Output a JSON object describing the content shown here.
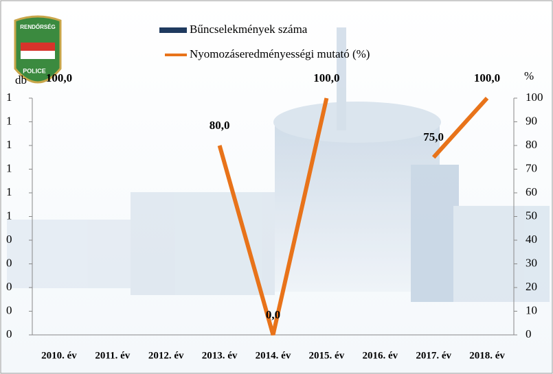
{
  "chart_data": {
    "type": "bar_line",
    "categories": [
      "2010. év",
      "2011. év",
      "2012. év",
      "2013. év",
      "2014. év",
      "2015. év",
      "2016. év",
      "2017. év",
      "2018. év"
    ],
    "series": [
      {
        "name": "Bűncselekmények száma",
        "type": "bar",
        "color": "#1f3a5f",
        "values": [
          0,
          0,
          0,
          0,
          0,
          0,
          0,
          0,
          0
        ]
      },
      {
        "name": "Nyomozáseredményességi mutató (%)",
        "type": "line",
        "axis": "y2",
        "color": "#e8731a",
        "values": [
          100,
          null,
          null,
          80,
          0,
          100,
          null,
          75,
          100
        ],
        "value_labels": [
          "100,0",
          null,
          null,
          "80,0",
          "0,0",
          "100,0",
          null,
          "75,0",
          "100,0"
        ]
      }
    ],
    "ylabel": "db",
    "y2label": "%",
    "ylim": [
      0,
      1
    ],
    "yticks": [
      {
        "value": 0,
        "label": "0"
      },
      {
        "value": 0.1,
        "label": "0"
      },
      {
        "value": 0.2,
        "label": "0"
      },
      {
        "value": 0.3,
        "label": "0"
      },
      {
        "value": 0.4,
        "label": "0"
      },
      {
        "value": 0.5,
        "label": "1"
      },
      {
        "value": 0.6,
        "label": "1"
      },
      {
        "value": 0.7,
        "label": "1"
      },
      {
        "value": 0.8,
        "label": "1"
      },
      {
        "value": 0.9,
        "label": "1"
      },
      {
        "value": 1,
        "label": "1"
      }
    ],
    "y2lim": [
      0,
      100
    ],
    "y2ticks": [
      0,
      10,
      20,
      30,
      40,
      50,
      60,
      70,
      80,
      90,
      100
    ],
    "legend": "top"
  },
  "logo": {
    "top": "RENDŐRSÉG",
    "bottom": "POLICE"
  }
}
